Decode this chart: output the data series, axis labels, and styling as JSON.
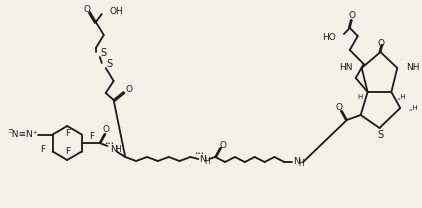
{
  "bg_color": "#f5f0e8",
  "line_color": "#1a1a1a",
  "lw": 1.3,
  "figsize": [
    4.22,
    2.08
  ],
  "dpi": 100,
  "xlim": [
    0,
    422
  ],
  "ylim": [
    0,
    208
  ]
}
